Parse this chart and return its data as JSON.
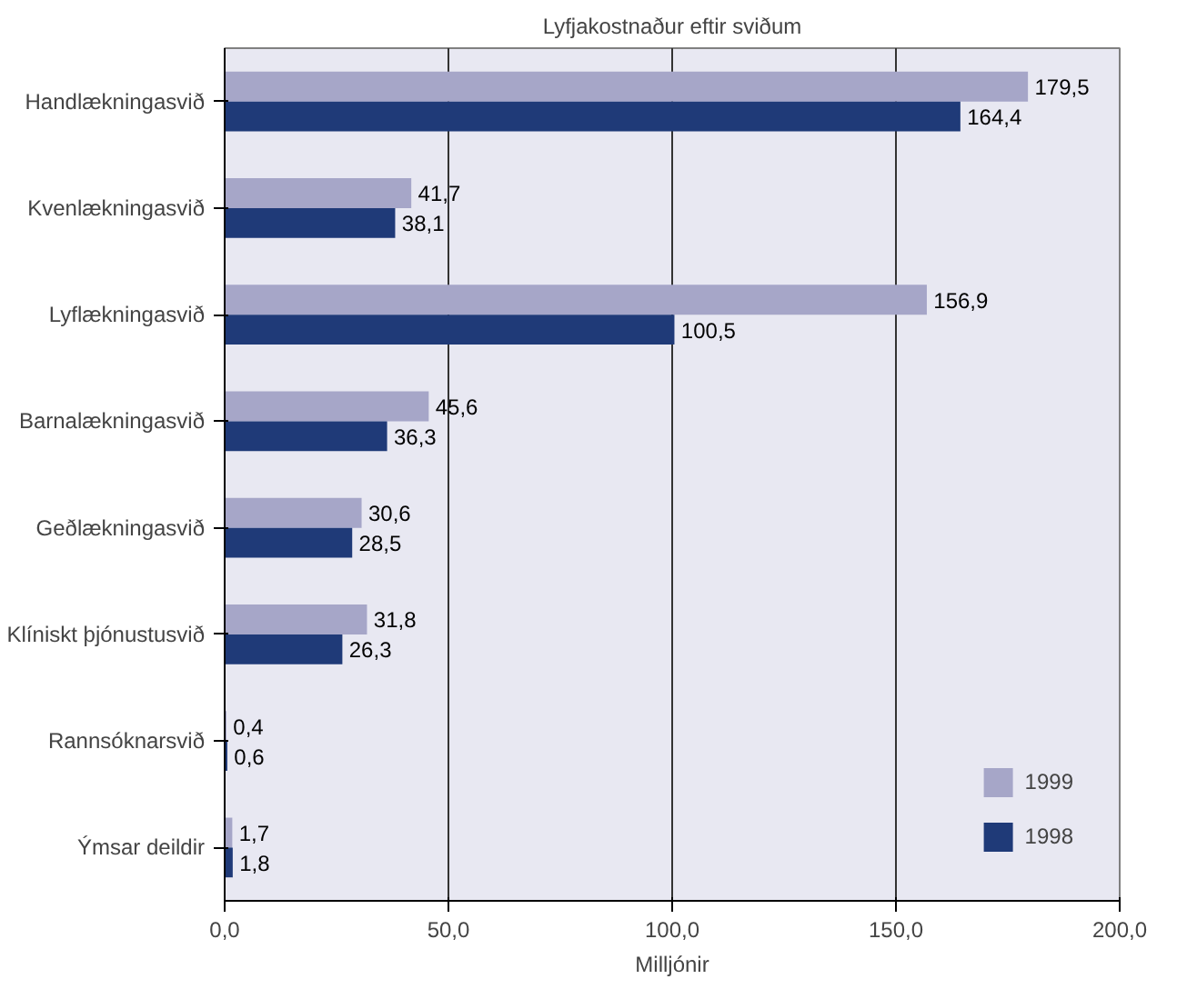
{
  "chart_data": {
    "type": "bar",
    "orientation": "horizontal",
    "title": "Lyfjakostnaður eftir sviðum",
    "xlabel": "Milljónir",
    "categories": [
      "Handlækningasvið",
      "Kvenlækningasvið",
      "Lyflækningasvið",
      "Barnalækningasvið",
      "Geðlækningasvið",
      "Klíniskt þjónustusvið",
      "Rannsóknarsvið",
      "Ýmsar deildir"
    ],
    "series": [
      {
        "name": "1999",
        "color": "#a6a6c8",
        "values": [
          179.5,
          41.7,
          156.9,
          45.6,
          30.6,
          31.8,
          0.4,
          1.7
        ],
        "value_labels": [
          "179,5",
          "41,7",
          "156,9",
          "45,6",
          "30,6",
          "31,8",
          "0,4",
          "1,7"
        ]
      },
      {
        "name": "1998",
        "color": "#1f3a78",
        "values": [
          164.4,
          38.1,
          100.5,
          36.3,
          28.5,
          26.3,
          0.6,
          1.8
        ],
        "value_labels": [
          "164,4",
          "38,1",
          "100,5",
          "36,3",
          "28,5",
          "26,3",
          "0,6",
          "1,8"
        ]
      }
    ],
    "xlim": [
      0,
      200
    ],
    "xticks": [
      {
        "value": 0,
        "label": "0,0"
      },
      {
        "value": 50,
        "label": "50,0"
      },
      {
        "value": 100,
        "label": "100,0"
      },
      {
        "value": 150,
        "label": "150,0"
      },
      {
        "value": 200,
        "label": "200,0"
      }
    ],
    "grid": "x",
    "legend": "bottom right"
  }
}
